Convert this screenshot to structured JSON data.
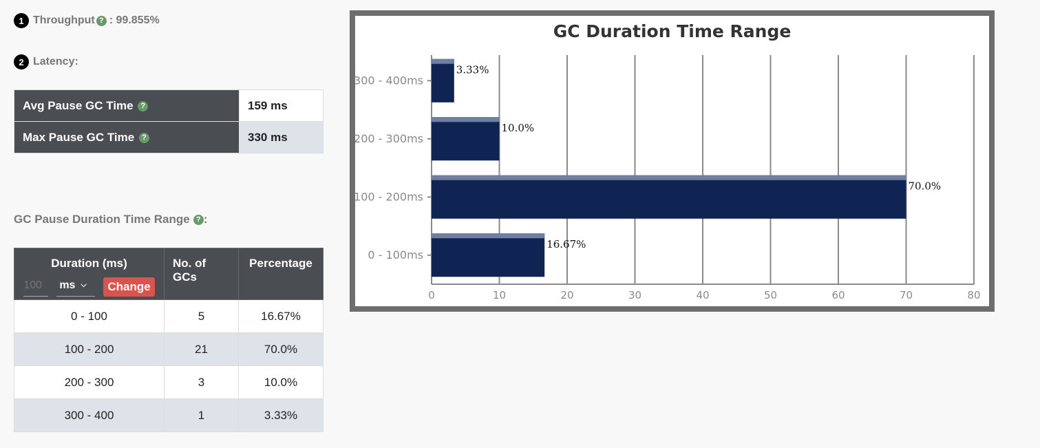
{
  "throughput": {
    "badge": "1",
    "label": "Throughput",
    "value": ": 99.855%"
  },
  "latency": {
    "badge": "2",
    "label": "Latency:",
    "rows": [
      {
        "label": "Avg Pause GC Time",
        "value": "159 ms"
      },
      {
        "label": "Max Pause GC Time",
        "value": "330 ms"
      }
    ]
  },
  "range_section": {
    "heading": "GC Pause Duration Time Range",
    "suffix": ":",
    "columns": [
      "Duration (ms)",
      "No. of GCs",
      "Percentage"
    ],
    "unit_input_placeholder": "100",
    "unit_select_value": "ms",
    "change_label": "Change",
    "rows": [
      {
        "duration": "0 - 100",
        "count": "5",
        "percentage": "16.67%"
      },
      {
        "duration": "100 - 200",
        "count": "21",
        "percentage": "70.0%"
      },
      {
        "duration": "200 - 300",
        "count": "3",
        "percentage": "10.0%"
      },
      {
        "duration": "300 - 400",
        "count": "1",
        "percentage": "3.33%"
      }
    ]
  },
  "icons": {
    "help": "question-circle-icon",
    "dropdown": "chevron-down-icon"
  },
  "colors": {
    "bar": "#0f2452",
    "header_bg": "#4a4d52",
    "help_icon": "#6a9a6a",
    "change_button": "#d9534f"
  },
  "chart_data": {
    "type": "bar",
    "orientation": "horizontal",
    "title": "GC Duration Time Range",
    "categories": [
      "300 - 400ms",
      "200 - 300ms",
      "100 - 200ms",
      "0 - 100ms"
    ],
    "values": [
      3.33,
      10.0,
      70.0,
      16.67
    ],
    "data_labels": [
      "3.33%",
      "10.0%",
      "70.0%",
      "16.67%"
    ],
    "x_ticks": [
      "0",
      "10",
      "20",
      "30",
      "40",
      "50",
      "60",
      "70",
      "80"
    ],
    "xlim": [
      0,
      80
    ],
    "grid": true,
    "legend": false
  }
}
